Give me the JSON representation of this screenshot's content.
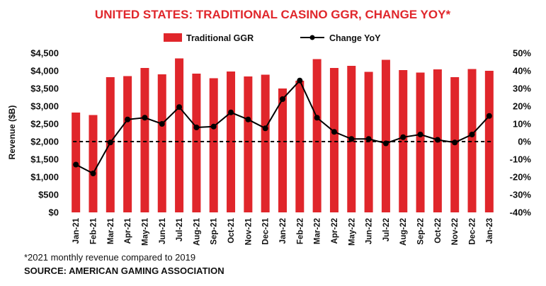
{
  "chart_data": {
    "type": "bar",
    "title": "UNITED STATES: TRADITIONAL CASINO GGR, CHANGE YOY*",
    "ylabel": "Revenue ($B)",
    "ylim": [
      0,
      4500
    ],
    "y_ticks": [
      "$0",
      "$500",
      "$1,000",
      "$1,500",
      "$2,000",
      "$2,500",
      "$3,000",
      "$3,500",
      "$4,000",
      "$4,500"
    ],
    "y2lim": [
      -40,
      50
    ],
    "y2_ticks": [
      "-40%",
      "-30%",
      "-20%",
      "-10%",
      "0%",
      "10%",
      "20%",
      "30%",
      "40%",
      "50%"
    ],
    "categories": [
      "Jan-21",
      "Feb-21",
      "Mar-21",
      "Apr-21",
      "May-21",
      "Jun-21",
      "Jul-21",
      "Aug-21",
      "Sep-21",
      "Oct-21",
      "Nov-21",
      "Dec-21",
      "Jan-22",
      "Feb-22",
      "Mar-22",
      "Apr-22",
      "May-22",
      "Jun-22",
      "Jul-22",
      "Aug-22",
      "Sep-22",
      "Oct-22",
      "Nov-22",
      "Dec-22",
      "Jan-23"
    ],
    "series": [
      {
        "name": "Traditional GGR",
        "type": "bar",
        "axis": "left",
        "values": [
          2820,
          2750,
          3820,
          3850,
          4080,
          3900,
          4350,
          3920,
          3790,
          3980,
          3840,
          3890,
          3500,
          3720,
          4330,
          4080,
          4140,
          3970,
          4310,
          4020,
          3950,
          4040,
          3820,
          4050,
          4000
        ]
      },
      {
        "name": "Change YoY",
        "type": "line",
        "axis": "right",
        "values": [
          -13,
          -18,
          -0.5,
          12.5,
          13.5,
          10,
          19.5,
          8,
          8.5,
          16.5,
          12.5,
          7.5,
          24,
          34.5,
          13.5,
          5.5,
          1.5,
          1.5,
          -1,
          2.5,
          4,
          1,
          -0.5,
          4,
          14.5
        ]
      }
    ],
    "reference_line": {
      "axis": "right",
      "value": 0,
      "style": "dashed"
    },
    "legend": "top-center",
    "grid": false,
    "colors": {
      "bar": "#e0262b",
      "line": "#000000",
      "title": "#e0262b"
    }
  },
  "footnote": "*2021 monthly revenue compared to 2019",
  "source": "SOURCE: AMERICAN GAMING ASSOCIATION"
}
